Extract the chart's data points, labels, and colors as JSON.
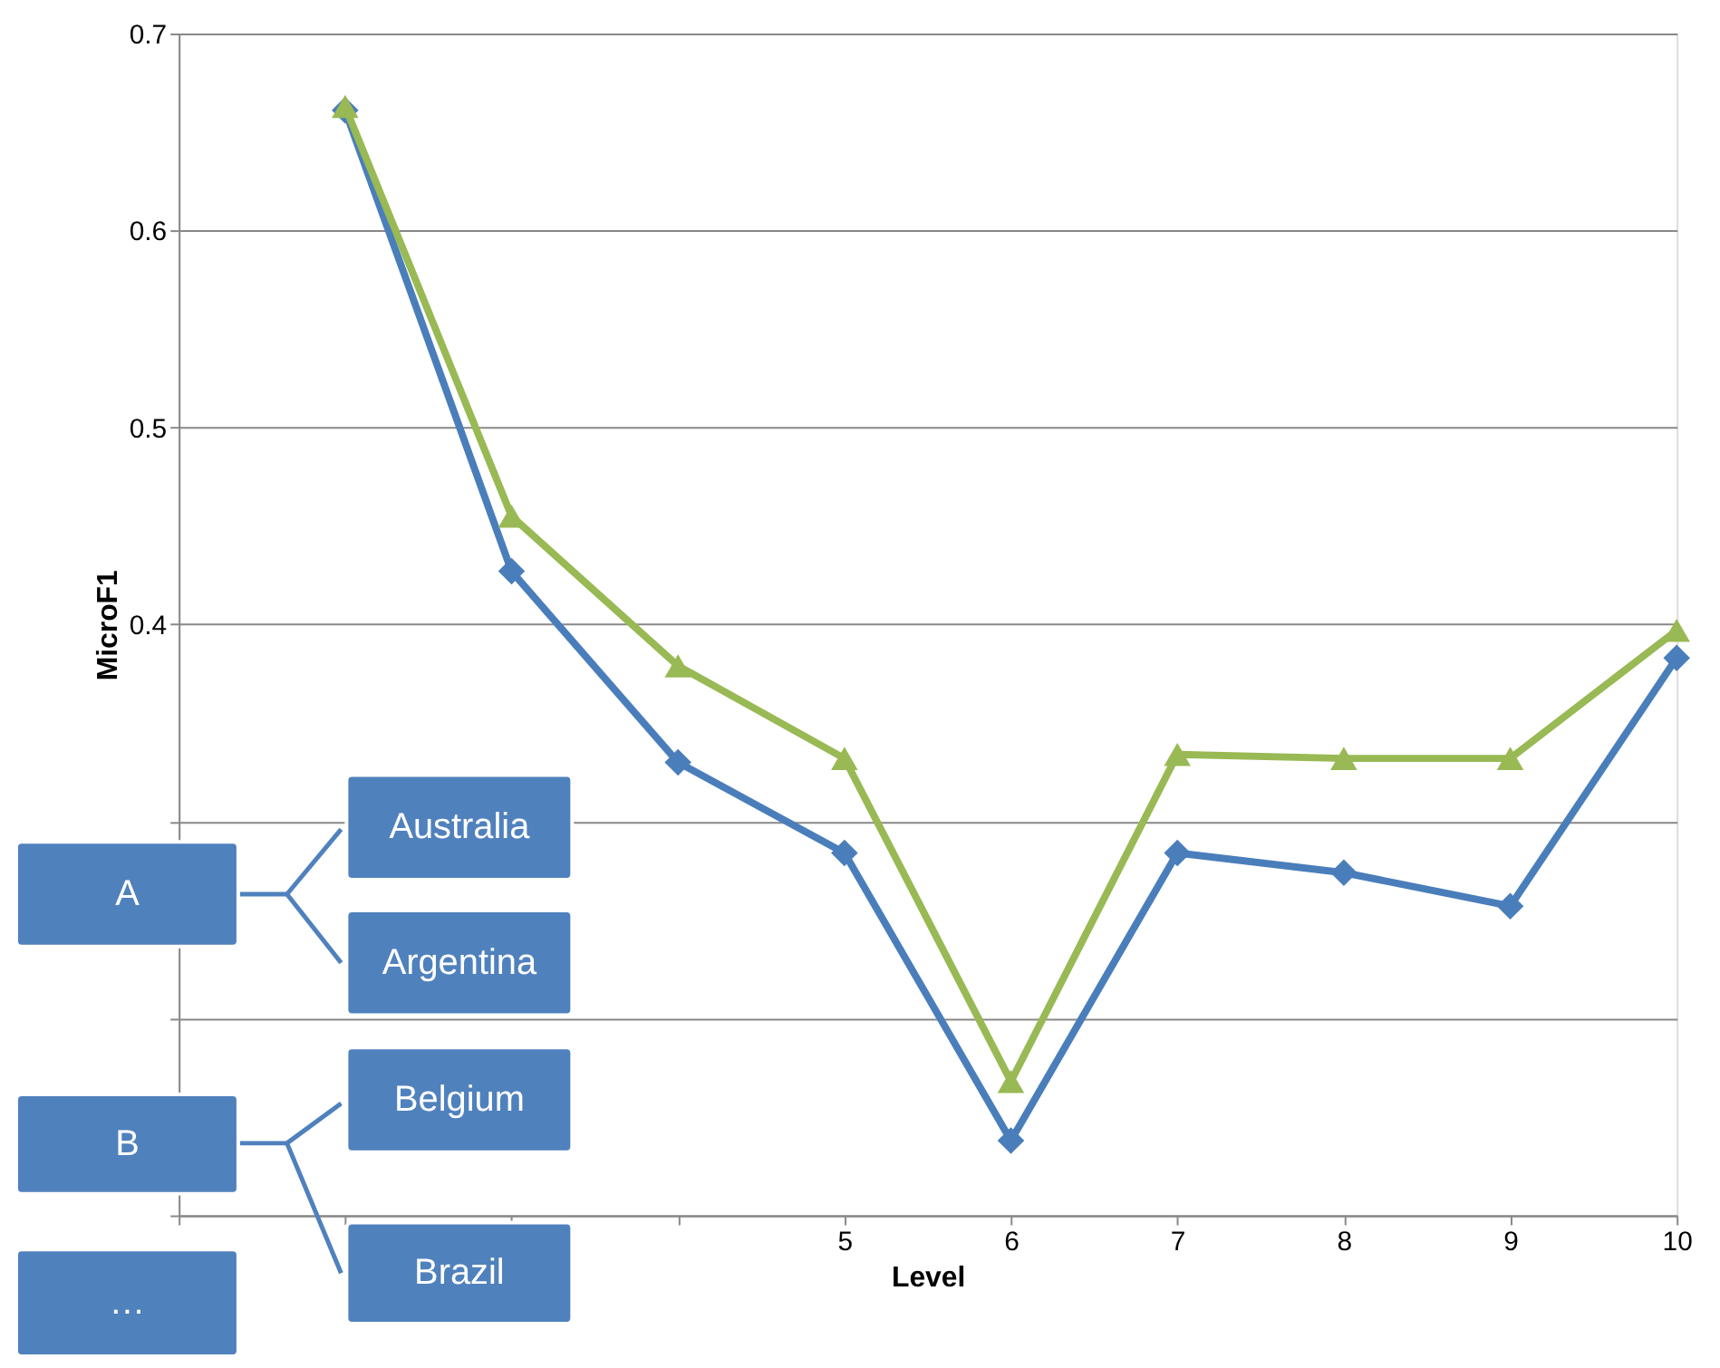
{
  "chart_data": {
    "type": "line",
    "xlabel": "Level",
    "ylabel": "MicroF1",
    "xlim": [
      1,
      10
    ],
    "xticks": [
      {
        "value": 1,
        "label": null
      },
      {
        "value": 2,
        "label": null
      },
      {
        "value": 3,
        "label": null
      },
      {
        "value": 4,
        "label": null
      },
      5,
      6,
      7,
      8,
      9,
      10
    ],
    "ylim": [
      0.1,
      0.7
    ],
    "yticks": [
      {
        "value": 0.1,
        "label": null
      },
      {
        "value": 0.2,
        "label": null
      },
      {
        "value": 0.3,
        "label": null
      },
      0.4,
      0.5,
      0.6,
      0.7
    ],
    "grid": "y",
    "line_style": "solid",
    "series": [
      {
        "color": "#4a7ebb",
        "marker": "diamond",
        "x": [
          2,
          3,
          4,
          5,
          6,
          7,
          8,
          9,
          10
        ],
        "values": [
          0.661,
          0.427,
          0.33,
          0.284,
          0.138,
          0.284,
          0.274,
          0.257,
          0.383
        ]
      },
      {
        "color": "#98b954",
        "marker": "triangle",
        "x": [
          2,
          3,
          4,
          5,
          6,
          7,
          8,
          9,
          10
        ],
        "values": [
          0.663,
          0.455,
          0.379,
          0.332,
          0.168,
          0.334,
          0.332,
          0.332,
          0.397
        ]
      }
    ],
    "annotations": [
      "A",
      "Australia",
      "Argentina",
      "B",
      "Belgium",
      "Brazil",
      "…"
    ]
  }
}
